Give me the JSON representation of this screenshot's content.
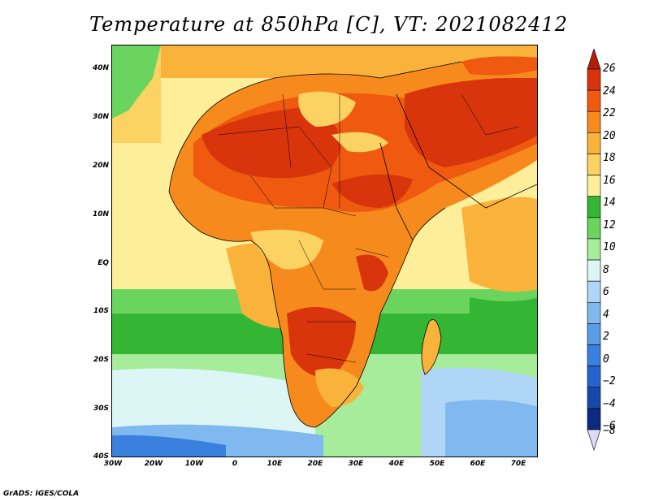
{
  "title": "Temperature at 850hPa [C], VT: 2021082412",
  "credit": "GrADS: IGES/COLA",
  "map": {
    "variable": "Temperature at 850hPa",
    "units": "C",
    "valid_time": "2021082412",
    "lat_range": [
      -40,
      45
    ],
    "lon_range": [
      -30,
      75
    ]
  },
  "axes": {
    "lat_ticks": [
      {
        "value": 40,
        "label": "40N"
      },
      {
        "value": 30,
        "label": "30N"
      },
      {
        "value": 20,
        "label": "20N"
      },
      {
        "value": 10,
        "label": "10N"
      },
      {
        "value": 0,
        "label": "EQ"
      },
      {
        "value": -10,
        "label": "10S"
      },
      {
        "value": -20,
        "label": "20S"
      },
      {
        "value": -30,
        "label": "30S"
      },
      {
        "value": -40,
        "label": "40S"
      }
    ],
    "lon_ticks": [
      {
        "value": -30,
        "label": "30W"
      },
      {
        "value": -20,
        "label": "20W"
      },
      {
        "value": -10,
        "label": "10W"
      },
      {
        "value": 0,
        "label": "0"
      },
      {
        "value": 10,
        "label": "10E"
      },
      {
        "value": 20,
        "label": "20E"
      },
      {
        "value": 30,
        "label": "30E"
      },
      {
        "value": 40,
        "label": "40E"
      },
      {
        "value": 50,
        "label": "50E"
      },
      {
        "value": 60,
        "label": "60E"
      },
      {
        "value": 70,
        "label": "70E"
      }
    ]
  },
  "colorbar": {
    "levels": [
      {
        "value": 26,
        "label": "26",
        "color": "#b41e06"
      },
      {
        "value": 24,
        "label": "24",
        "color": "#d9350c"
      },
      {
        "value": 22,
        "label": "22",
        "color": "#ef5a10"
      },
      {
        "value": 20,
        "label": "20",
        "color": "#f68a1c"
      },
      {
        "value": 18,
        "label": "18",
        "color": "#f9b23a"
      },
      {
        "value": 16,
        "label": "16",
        "color": "#fcd262"
      },
      {
        "value": 14,
        "label": "14",
        "color": "#fdee9a"
      },
      {
        "value": 12,
        "label": "12",
        "color": "#35b534"
      },
      {
        "value": 10,
        "label": "10",
        "color": "#6ad45f"
      },
      {
        "value": 8,
        "label": "8",
        "color": "#a6ec9b"
      },
      {
        "value": 6,
        "label": "6",
        "color": "#dcf6f6"
      },
      {
        "value": 4,
        "label": "4",
        "color": "#afd6f7"
      },
      {
        "value": 2,
        "label": "2",
        "color": "#80b8f0"
      },
      {
        "value": 0,
        "label": "0",
        "color": "#5a9ce8"
      },
      {
        "value": -2,
        "label": "−2",
        "color": "#3a80de"
      },
      {
        "value": -4,
        "label": "−4",
        "color": "#2563cc"
      },
      {
        "value": -6,
        "label": "−6",
        "color": "#1648ab"
      },
      {
        "value": -8,
        "label": "−8",
        "color": "#0c2a80"
      }
    ],
    "over_color": "#b41e06",
    "under_color": "#dcdcf6"
  }
}
